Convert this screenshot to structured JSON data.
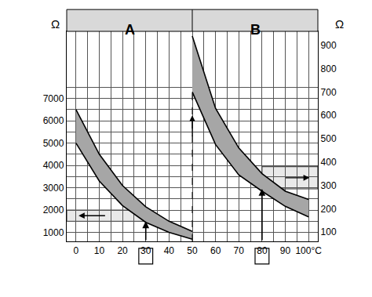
{
  "chart_data": {
    "type": "band",
    "color": "#a6a6a6",
    "grid": true,
    "xlim": [
      -4,
      104
    ],
    "xticks": [
      0,
      10,
      20,
      30,
      40,
      50,
      60,
      70,
      80,
      90,
      {
        "value": 100,
        "label": "100°C"
      }
    ],
    "ylim": [
      600,
      10000
    ],
    "yticks": [
      1000,
      2000,
      3000,
      4000,
      5000,
      6000,
      7000
    ],
    "y2lim": [
      60,
      960
    ],
    "y2ticks": [
      100,
      200,
      300,
      400,
      500,
      600,
      700,
      800,
      900
    ],
    "y_label": "Ω",
    "y2_label": "Ω",
    "panels": [
      {
        "label": "A",
        "axis": "y",
        "x": [
          0,
          10,
          20,
          30,
          40,
          50
        ],
        "upper": [
          6500,
          4500,
          3100,
          2150,
          1500,
          1050
        ],
        "lower": [
          5000,
          3300,
          2200,
          1450,
          1000,
          700
        ]
      },
      {
        "label": "B",
        "axis": "y2",
        "x": [
          50,
          60,
          70,
          80,
          90,
          100
        ],
        "upper": [
          940,
          630,
          460,
          350,
          275,
          240
        ],
        "lower": [
          700,
          475,
          345,
          275,
          210,
          165
        ]
      }
    ],
    "readings": [
      {
        "x": 30,
        "y_low": 1500,
        "y_high": 2000,
        "axis": "y",
        "direction": "left"
      },
      {
        "x": 80,
        "y_low": 285,
        "y_high": 380,
        "axis": "y2",
        "direction": "right"
      }
    ]
  }
}
